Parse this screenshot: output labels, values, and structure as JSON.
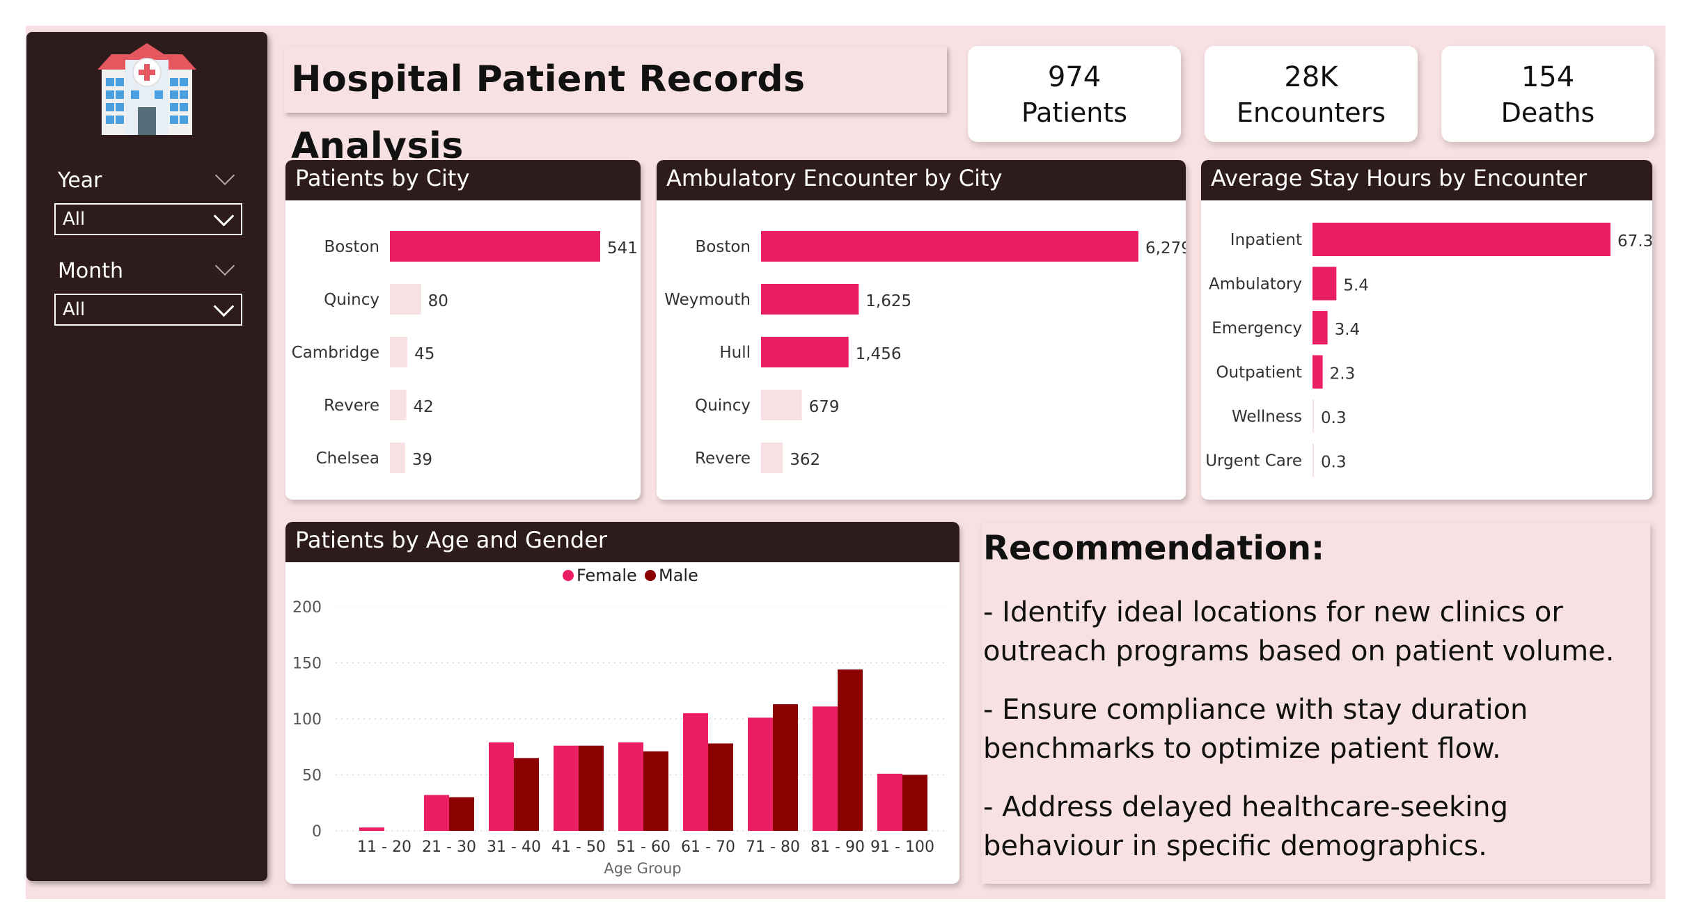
{
  "header": {
    "title": "Hospital Patient Records Analysis"
  },
  "filters": [
    {
      "label": "Year",
      "value": "All"
    },
    {
      "label": "Month",
      "value": "All"
    }
  ],
  "kpis": [
    {
      "value": "974",
      "label": "Patients"
    },
    {
      "value": "28K",
      "label": "Encounters"
    },
    {
      "value": "154",
      "label": "Deaths"
    }
  ],
  "colors": {
    "accent": "#e91e63",
    "light": "#f8e1e2",
    "male": "#8b0000",
    "dark": "#2e1b1c"
  },
  "recommendation": {
    "title": "Recommendation:",
    "items": [
      "- Identify ideal locations for new clinics or outreach programs based on patient volume.",
      "- Ensure compliance with stay duration benchmarks to optimize patient flow.",
      "- Address delayed healthcare-seeking behaviour in specific demographics."
    ]
  },
  "chart_data": [
    {
      "type": "bar",
      "title": "Patients by City",
      "orientation": "horizontal",
      "categories": [
        "Boston",
        "Quincy",
        "Cambridge",
        "Revere",
        "Chelsea"
      ],
      "values": [
        541,
        80,
        45,
        42,
        39
      ],
      "labels": [
        "541",
        "80",
        "45",
        "42",
        "39"
      ]
    },
    {
      "type": "bar",
      "title": "Ambulatory Encounter by City",
      "orientation": "horizontal",
      "categories": [
        "Boston",
        "Weymouth",
        "Hull",
        "Quincy",
        "Revere"
      ],
      "values": [
        6279,
        1625,
        1456,
        679,
        362
      ],
      "labels": [
        "6,279",
        "1,625",
        "1,456",
        "679",
        "362"
      ]
    },
    {
      "type": "bar",
      "title": "Average Stay Hours by Encounter Class",
      "orientation": "horizontal",
      "categories": [
        "Inpatient",
        "Ambulatory",
        "Emergency",
        "Outpatient",
        "Wellness",
        "Urgent Care"
      ],
      "values": [
        67.3,
        5.4,
        3.4,
        2.3,
        0.3,
        0.3
      ],
      "labels": [
        "67.3",
        "5.4",
        "3.4",
        "2.3",
        "0.3",
        "0.3"
      ]
    },
    {
      "type": "bar",
      "title": "Patients by Age and Gender",
      "xlabel": "Age Group",
      "categories": [
        "11 - 20",
        "21 - 30",
        "31 - 40",
        "41 - 50",
        "51 - 60",
        "61 - 70",
        "71 - 80",
        "81 - 90",
        "91 - 100"
      ],
      "series": [
        {
          "name": "Female",
          "values": [
            3,
            32,
            79,
            76,
            79,
            105,
            101,
            111,
            51
          ]
        },
        {
          "name": "Male",
          "values": [
            0,
            30,
            65,
            76,
            71,
            78,
            113,
            144,
            50
          ]
        }
      ],
      "yticks": [
        "0",
        "50",
        "100",
        "150",
        "200"
      ],
      "ylim": [
        0,
        200
      ],
      "legend": "top-center"
    }
  ]
}
